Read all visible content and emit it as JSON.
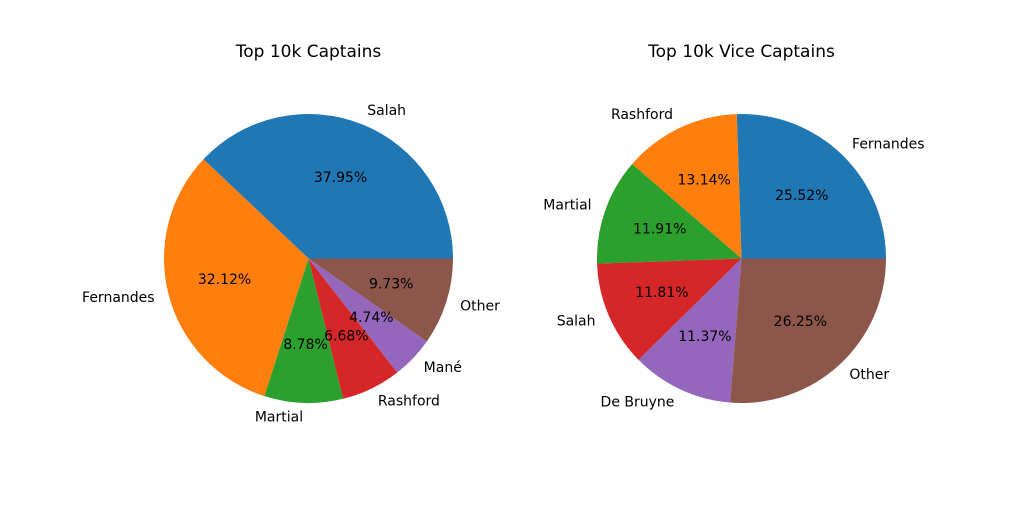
{
  "chart_data": [
    {
      "type": "pie",
      "title": "Top 10k Captains",
      "slices": [
        {
          "label": "Salah",
          "value": 37.95,
          "pct_text": "37.95%",
          "color": "#1f77b4"
        },
        {
          "label": "Fernandes",
          "value": 32.12,
          "pct_text": "32.12%",
          "color": "#ff7f0e"
        },
        {
          "label": "Martial",
          "value": 8.78,
          "pct_text": "8.78%",
          "color": "#2ca02c"
        },
        {
          "label": "Rashford",
          "value": 6.68,
          "pct_text": "6.68%",
          "color": "#d62728"
        },
        {
          "label": "Mané",
          "value": 4.74,
          "pct_text": "4.74%",
          "color": "#9467bd"
        },
        {
          "label": "Other",
          "value": 9.73,
          "pct_text": "9.73%",
          "color": "#8c564b"
        }
      ]
    },
    {
      "type": "pie",
      "title": "Top 10k Vice Captains",
      "slices": [
        {
          "label": "Fernandes",
          "value": 25.52,
          "pct_text": "25.52%",
          "color": "#1f77b4"
        },
        {
          "label": "Rashford",
          "value": 13.14,
          "pct_text": "13.14%",
          "color": "#ff7f0e"
        },
        {
          "label": "Martial",
          "value": 11.91,
          "pct_text": "11.91%",
          "color": "#2ca02c"
        },
        {
          "label": "Salah",
          "value": 11.81,
          "pct_text": "11.81%",
          "color": "#d62728"
        },
        {
          "label": "De Bruyne",
          "value": 11.37,
          "pct_text": "11.37%",
          "color": "#9467bd"
        },
        {
          "label": "Other",
          "value": 26.25,
          "pct_text": "26.25%",
          "color": "#8c564b"
        }
      ]
    }
  ]
}
